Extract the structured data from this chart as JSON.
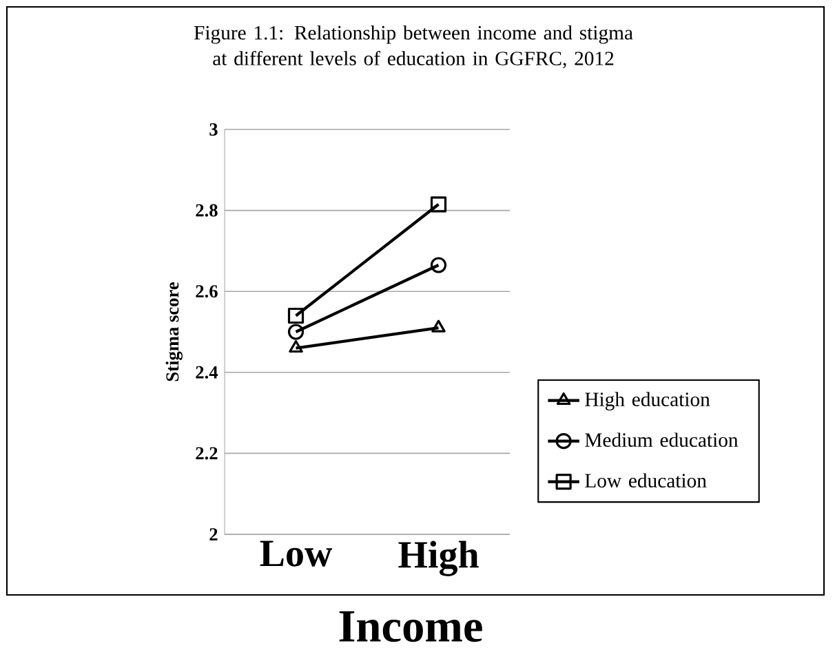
{
  "chart_data": {
    "type": "line",
    "title": "Figure 1.1: Relationship between income and stigma at different levels of education in GGFRC, 2012",
    "xlabel": "Income",
    "ylabel": "Stigma score",
    "categories": [
      "Low",
      "High"
    ],
    "series": [
      {
        "name": "High education",
        "color": "#000000",
        "marker": "triangle",
        "values": [
          2.46,
          2.51
        ]
      },
      {
        "name": "Medium education",
        "color": "#000000",
        "marker": "circle",
        "values": [
          2.5,
          2.665
        ]
      },
      {
        "name": "Low education",
        "color": "#000000",
        "marker": "square",
        "values": [
          2.54,
          2.815
        ]
      }
    ],
    "ylim": [
      2,
      3
    ],
    "yticks": [
      2,
      2.2,
      2.4,
      2.6,
      2.8,
      3
    ],
    "grid": "y",
    "legend": "right",
    "line_style": "solid"
  }
}
